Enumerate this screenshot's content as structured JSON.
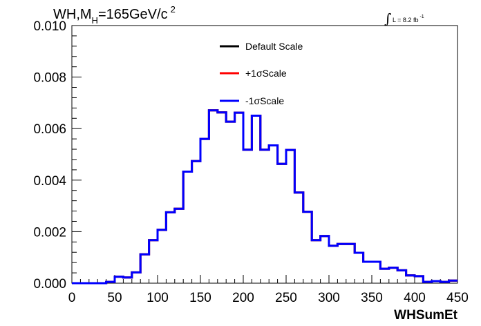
{
  "chart_data": {
    "type": "line",
    "title_parts": {
      "pre": "WH,M",
      "sub": "H",
      "mid": "=165GeV/c",
      "sup": "2"
    },
    "lumi_label": "L = 8.2 fb",
    "lumi_sup": "-1",
    "integral_symbol": "∫",
    "xlabel": "WHSumEt",
    "ylabel": "",
    "xlim": [
      0,
      450
    ],
    "ylim": [
      0,
      0.01
    ],
    "x_ticks": [
      0,
      50,
      100,
      150,
      200,
      250,
      300,
      350,
      400,
      450
    ],
    "y_ticks": [
      0.0,
      0.002,
      0.004,
      0.006,
      0.008,
      0.01
    ],
    "y_tick_labels": [
      "0.000",
      "0.002",
      "0.004",
      "0.006",
      "0.008",
      "0.010"
    ],
    "grid": false,
    "legend_position": "top-center",
    "bin_width": 10,
    "bin_edges": [
      0,
      10,
      20,
      30,
      40,
      50,
      60,
      70,
      80,
      90,
      100,
      110,
      120,
      130,
      140,
      150,
      160,
      170,
      180,
      190,
      200,
      210,
      220,
      230,
      240,
      250,
      260,
      270,
      280,
      290,
      300,
      310,
      320,
      330,
      340,
      350,
      360,
      370,
      380,
      390,
      400,
      410,
      420,
      430,
      440,
      450
    ],
    "series": [
      {
        "name": "Default Scale",
        "color": "#000000",
        "values": [
          0,
          0,
          0,
          0,
          5e-05,
          0.00025,
          0.00022,
          0.00042,
          0.00112,
          0.00167,
          0.00207,
          0.00275,
          0.00289,
          0.00433,
          0.00474,
          0.0056,
          0.00671,
          0.00663,
          0.00627,
          0.00662,
          0.00518,
          0.0065,
          0.00518,
          0.00535,
          0.00463,
          0.00517,
          0.00352,
          0.00277,
          0.00167,
          0.00183,
          0.00145,
          0.00152,
          0.00152,
          0.00118,
          0.00083,
          0.00083,
          0.00056,
          0.0006,
          0.0005,
          0.0003,
          0.00027,
          5e-05,
          8e-05,
          5e-05,
          0.0001
        ]
      },
      {
        "name": "+1σScale",
        "color": "#ff0000",
        "values": [
          0,
          0,
          0,
          0,
          5e-05,
          0.00025,
          0.00022,
          0.00042,
          0.00112,
          0.00167,
          0.00207,
          0.00275,
          0.00289,
          0.00433,
          0.00474,
          0.0056,
          0.00671,
          0.00663,
          0.00627,
          0.00662,
          0.00518,
          0.0065,
          0.00518,
          0.00535,
          0.00463,
          0.00517,
          0.00352,
          0.00277,
          0.00167,
          0.00183,
          0.00145,
          0.00152,
          0.00152,
          0.00118,
          0.00083,
          0.00083,
          0.00056,
          0.0006,
          0.0005,
          0.0003,
          0.00027,
          5e-05,
          8e-05,
          5e-05,
          0.0001
        ]
      },
      {
        "name": "-1σScale",
        "color": "#0000ff",
        "values": [
          0,
          0,
          0,
          0,
          5e-05,
          0.00025,
          0.00022,
          0.00042,
          0.00112,
          0.00167,
          0.00207,
          0.00275,
          0.00289,
          0.00433,
          0.00474,
          0.0056,
          0.00671,
          0.00663,
          0.00627,
          0.00662,
          0.00518,
          0.0065,
          0.00518,
          0.00535,
          0.00463,
          0.00517,
          0.00352,
          0.00277,
          0.00167,
          0.00183,
          0.00145,
          0.00152,
          0.00152,
          0.00118,
          0.00083,
          0.00083,
          0.00056,
          0.0006,
          0.0005,
          0.0003,
          0.00027,
          5e-05,
          8e-05,
          5e-05,
          0.0001
        ]
      }
    ]
  }
}
